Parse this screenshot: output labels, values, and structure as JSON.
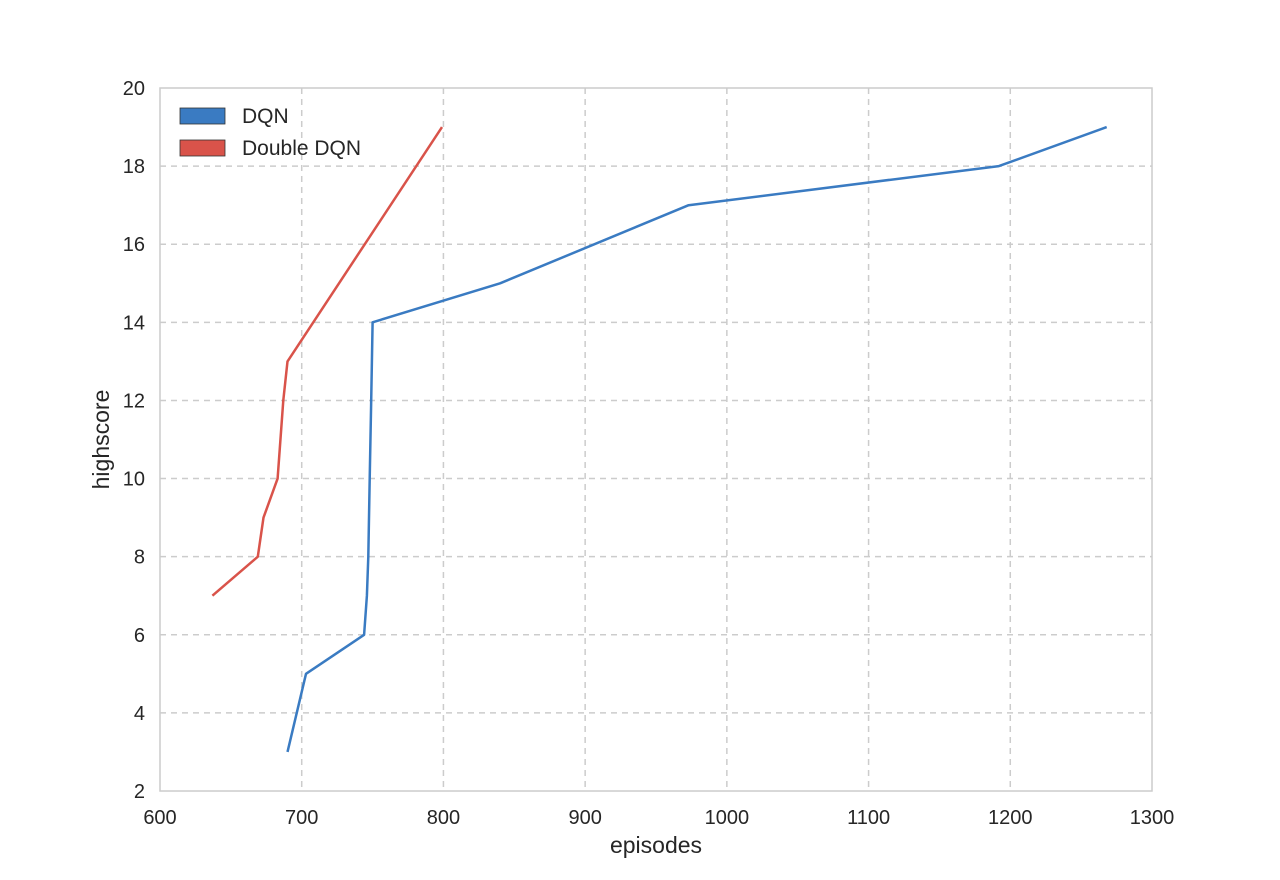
{
  "chart_data": {
    "type": "line",
    "title": "",
    "xlabel": "episodes",
    "ylabel": "highscore",
    "xlim": [
      600,
      1300
    ],
    "ylim": [
      2,
      20
    ],
    "xticks": [
      600,
      700,
      800,
      900,
      1000,
      1100,
      1200,
      1300
    ],
    "yticks": [
      2,
      4,
      6,
      8,
      10,
      12,
      14,
      16,
      18,
      20
    ],
    "grid": true,
    "legend_position": "top-left",
    "series": [
      {
        "name": "DQN",
        "color": "#3a7bc2",
        "points": [
          [
            690,
            3
          ],
          [
            703,
            5
          ],
          [
            744,
            6
          ],
          [
            746,
            7
          ],
          [
            747,
            8
          ],
          [
            748,
            10
          ],
          [
            749,
            12
          ],
          [
            750,
            14
          ],
          [
            840,
            15
          ],
          [
            973,
            17
          ],
          [
            1192,
            18
          ],
          [
            1268,
            19
          ]
        ]
      },
      {
        "name": "Double DQN",
        "color": "#d9534a",
        "points": [
          [
            637,
            7
          ],
          [
            669,
            8
          ],
          [
            673,
            9
          ],
          [
            683,
            10
          ],
          [
            687,
            12
          ],
          [
            690,
            13
          ],
          [
            799,
            19
          ]
        ]
      }
    ]
  }
}
